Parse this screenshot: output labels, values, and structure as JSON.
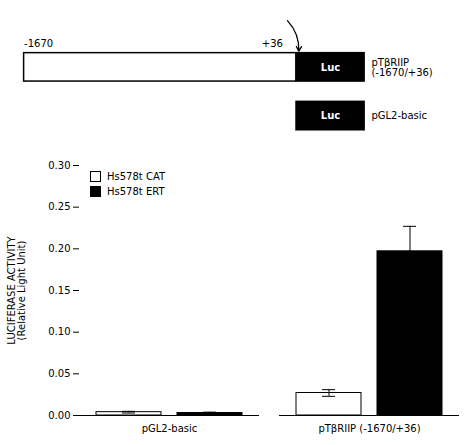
{
  "chart_data": {
    "type": "bar",
    "annotations": [
      "-1670",
      "+36",
      "Luc",
      "pTβRIIP\n(-1670/+36)",
      "Luc",
      "pGL2-basic"
    ],
    "ylabel": "LUCIFERASE ACTIVITY\n(Relative Light Unit)",
    "categories": [
      "pGL2-basic",
      "pTβRIIP (-1670/+36)"
    ],
    "series": [
      {
        "name": "Hs578t CAT",
        "color": "white",
        "values": [
          0.004,
          0.027
        ],
        "errors": [
          0.001,
          0.004
        ]
      },
      {
        "name": "Hs578t ERT",
        "color": "black",
        "values": [
          0.003,
          0.197
        ],
        "errors": [
          0.001,
          0.03
        ]
      }
    ],
    "ylim": [
      0,
      0.3
    ],
    "yticks": [
      {
        "value": 0.0,
        "label": "0.00"
      },
      0.05,
      {
        "value": 0.1,
        "label": "0.10"
      },
      0.15,
      {
        "value": 0.2,
        "label": "0.20"
      },
      0.25,
      {
        "value": 0.3,
        "label": "0.30"
      }
    ],
    "legend": "upper left",
    "grid": false
  }
}
